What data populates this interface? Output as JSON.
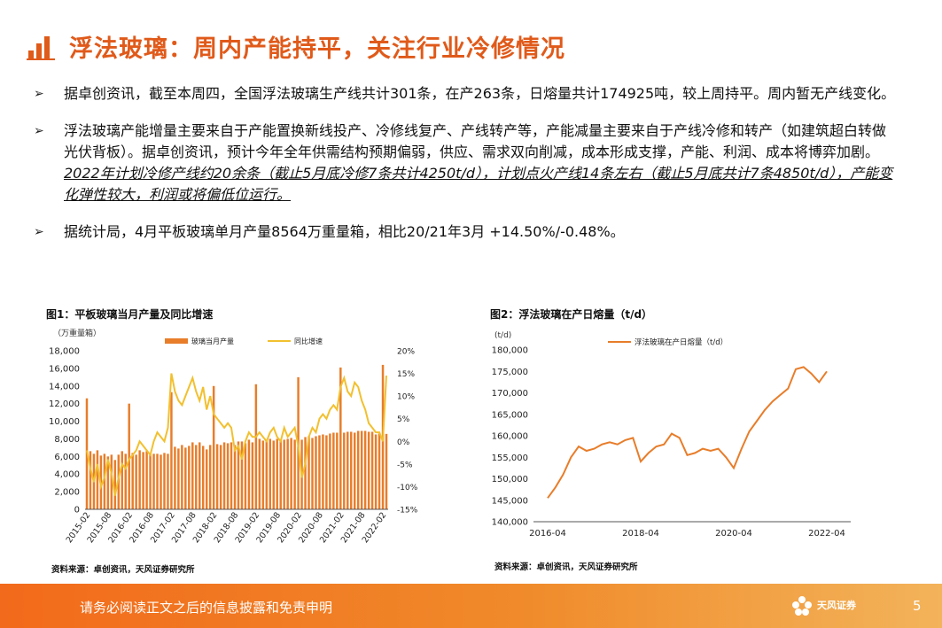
{
  "header": {
    "title": "浮法玻璃：周内产能持平，关注行业冷修情况"
  },
  "bullets": {
    "b1": "据卓创资讯，截至本周四，全国浮法玻璃生产线共计301条，在产263条，日熔量共计174925吨，较上周持平。周内暂无产线变化。",
    "b2_plain": "浮法玻璃产能增量主要来自于产能置换新线投产、冷修线复产、产线转产等，产能减量主要来自于产线冷修和转产（如建筑超白转做光伏背板）。据卓创资讯，预计今年全年供需结构预期偏弱，供应、需求双向削减，成本形成支撑，产能、利润、成本将博弈加剧。",
    "b2_emph": "2022年计划冷修产线约20余条（截止5月底冷修7条共计4250t/d），计划点火产线14条左右（截止5月底共计7条4850t/d），产能变化弹性较大，利润或将偏低位运行。",
    "b3": "据统计局，4月平板玻璃单月产量8564万重量箱，相比20/21年3月 +14.50%/-0.48%。"
  },
  "figure1": {
    "title": "图1：平板玻璃当月产量及同比增速",
    "source": "资料来源：卓创资讯，天风证券研究所"
  },
  "figure2": {
    "title": "图2：浮法玻璃在产日熔量（t/d）",
    "source": "资料来源：卓创资讯，天风证券研究所"
  },
  "footer": {
    "disclaimer": "请务必阅读正文之后的信息披露和免责申明",
    "brand": "天风证券",
    "page": "5"
  },
  "colors": {
    "accent": "#e05a1a",
    "bar": "#e87d2a",
    "line2": "#f2c02f"
  },
  "chart_data": [
    {
      "type": "bar",
      "title": "图1：平板玻璃当月产量及同比增速",
      "ylabel": "（万重量箱）",
      "ylim": [
        0,
        18000
      ],
      "y2lim": [
        -15,
        20
      ],
      "y_ticks": [
        "0",
        "2,000",
        "4,000",
        "6,000",
        "8,000",
        "10,000",
        "12,000",
        "14,000",
        "16,000",
        "18,000"
      ],
      "y2_ticks": [
        "-15%",
        "-10%",
        "-5%",
        "0%",
        "5%",
        "10%",
        "15%",
        "20%"
      ],
      "x_ticks": [
        "2015-02",
        "2015-08",
        "2016-02",
        "2016-08",
        "2017-02",
        "2017-08",
        "2018-02",
        "2018-08",
        "2019-02",
        "2019-08",
        "2020-02",
        "2020-08",
        "2021-02",
        "2021-08",
        "2022-02"
      ],
      "series": [
        {
          "name": "玻璃当月产量",
          "axis": "left",
          "start": "2015-02",
          "values": [
            12600,
            6600,
            6300,
            6700,
            6100,
            6300,
            6000,
            6200,
            5600,
            6200,
            6600,
            6300,
            12000,
            6400,
            6200,
            6700,
            6500,
            6600,
            6300,
            6300,
            6300,
            6200,
            6400,
            6300,
            13300,
            7100,
            6900,
            7300,
            7000,
            7200,
            7600,
            7300,
            7600,
            7200,
            6800,
            7300,
            14000,
            7400,
            7300,
            7600,
            7500,
            7600,
            7300,
            7700,
            7700,
            7500,
            7900,
            7600,
            14200,
            8000,
            7800,
            7900,
            8000,
            7800,
            8000,
            7900,
            7900,
            8000,
            8100,
            7900,
            15000,
            7900,
            8200,
            8300,
            8100,
            8300,
            8400,
            8500,
            8400,
            8600,
            8700,
            8700,
            16100,
            8700,
            8800,
            8800,
            8700,
            8900,
            8900,
            8900,
            8800,
            8800,
            8500,
            8600,
            16400,
            8564
          ]
        },
        {
          "name": "同比增速",
          "axis": "right",
          "start": "2015-02",
          "values": [
            -2,
            -6,
            -9,
            -5,
            -10,
            -8,
            -4,
            -7,
            -12,
            -8,
            -5,
            -6,
            -4,
            -3,
            -2,
            0,
            -1,
            -2,
            -3,
            0,
            2,
            1,
            0,
            3,
            15,
            11,
            9,
            8,
            10,
            12,
            14,
            11,
            9,
            12,
            7,
            10,
            6,
            5,
            4,
            3,
            4,
            3,
            -2,
            -1,
            -4,
            0,
            2,
            1,
            1,
            2,
            1,
            0,
            2,
            3,
            1,
            0,
            3,
            1,
            2,
            3,
            -1,
            -8,
            -5,
            1,
            3,
            2,
            5,
            6,
            5,
            7,
            8,
            7,
            12,
            14,
            11,
            10,
            13,
            12,
            9,
            7,
            4,
            3,
            2,
            2,
            0,
            14.5
          ]
        }
      ]
    },
    {
      "type": "line",
      "title": "图2：浮法玻璃在产日熔量（t/d）",
      "ylabel": "(t/d)",
      "ylim": [
        140000,
        180000
      ],
      "y_ticks": [
        "140,000",
        "145,000",
        "150,000",
        "155,000",
        "160,000",
        "165,000",
        "170,000",
        "175,000",
        "180,000"
      ],
      "x_ticks": [
        "2016-04",
        "2018-04",
        "2020-04",
        "2022-04"
      ],
      "series": [
        {
          "name": "浮法玻璃在产日熔量（t/d）",
          "x": [
            "2016-04",
            "2016-06",
            "2016-08",
            "2016-10",
            "2016-12",
            "2017-02",
            "2017-04",
            "2017-06",
            "2017-08",
            "2017-10",
            "2017-12",
            "2018-02",
            "2018-04",
            "2018-06",
            "2018-08",
            "2018-10",
            "2018-12",
            "2019-02",
            "2019-04",
            "2019-06",
            "2019-08",
            "2019-10",
            "2019-12",
            "2020-02",
            "2020-04",
            "2020-06",
            "2020-08",
            "2020-10",
            "2020-12",
            "2021-02",
            "2021-04",
            "2021-06",
            "2021-08",
            "2021-10",
            "2021-12",
            "2022-02",
            "2022-04"
          ],
          "values": [
            145500,
            148000,
            151000,
            155000,
            157500,
            156500,
            157000,
            158000,
            158500,
            158000,
            159000,
            159500,
            154000,
            156000,
            157500,
            158000,
            160500,
            159500,
            155500,
            156000,
            157000,
            156500,
            157000,
            155000,
            152500,
            157000,
            161000,
            163500,
            166000,
            168000,
            169500,
            171000,
            175500,
            176000,
            174500,
            172500,
            175000
          ]
        }
      ]
    }
  ]
}
